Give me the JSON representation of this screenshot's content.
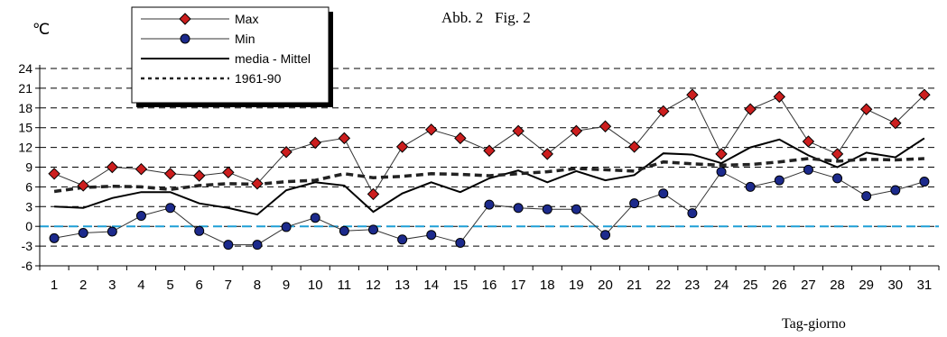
{
  "chart_data": {
    "type": "line",
    "figure_label": "Abb. 2   Fig. 2",
    "ylabel": "℃",
    "xlabel": "Tag-giorno",
    "ylim": [
      -6,
      24
    ],
    "yticks": [
      24,
      21,
      18,
      15,
      12,
      9,
      6,
      3,
      0,
      -3,
      -6
    ],
    "grid": "dashed horizontal",
    "legend_position": "top-left",
    "x": [
      1,
      2,
      3,
      4,
      5,
      6,
      7,
      8,
      9,
      10,
      11,
      12,
      13,
      14,
      15,
      16,
      17,
      18,
      19,
      20,
      21,
      22,
      23,
      24,
      25,
      26,
      27,
      28,
      29,
      30,
      31
    ],
    "reference_line": {
      "y": 0,
      "color": "#1f9fd6"
    },
    "series": [
      {
        "name": "Max",
        "color": "#cc1e1e",
        "marker": "diamond",
        "values": [
          8.0,
          6.2,
          9.0,
          8.7,
          8.0,
          7.7,
          8.2,
          6.5,
          11.3,
          12.7,
          13.4,
          4.9,
          12.1,
          14.7,
          13.4,
          11.5,
          14.5,
          11.0,
          14.5,
          15.2,
          12.1,
          17.5,
          20.0,
          11.0,
          17.8,
          19.7,
          12.9,
          11.0,
          17.8,
          15.7,
          20.0
        ]
      },
      {
        "name": "Min",
        "color": "#1c2a8c",
        "marker": "circle",
        "values": [
          -1.8,
          -1.0,
          -0.8,
          1.6,
          2.8,
          -0.7,
          -2.8,
          -2.8,
          -0.1,
          1.3,
          -0.7,
          -0.5,
          -2.0,
          -1.3,
          -2.5,
          3.3,
          2.8,
          2.6,
          2.6,
          -1.3,
          3.5,
          5.0,
          2.0,
          8.3,
          6.0,
          7.0,
          8.6,
          7.3,
          4.6,
          5.5,
          6.8
        ]
      },
      {
        "name": "media - Mittel",
        "color": "#000000",
        "marker": "none",
        "values": [
          3.0,
          2.8,
          4.3,
          5.2,
          5.2,
          3.5,
          2.8,
          1.8,
          5.5,
          6.7,
          6.2,
          2.2,
          5.0,
          6.7,
          5.2,
          7.3,
          8.5,
          6.7,
          8.4,
          7.0,
          7.8,
          11.1,
          10.9,
          9.6,
          12.0,
          13.2,
          10.8,
          9.0,
          11.2,
          10.5,
          13.4
        ]
      },
      {
        "name": "1961-90",
        "color": "#222222",
        "marker": "none",
        "dash": "dotted",
        "values": [
          5.3,
          5.9,
          6.1,
          6.0,
          5.6,
          6.2,
          6.5,
          6.4,
          6.8,
          7.0,
          8.0,
          7.4,
          7.6,
          8.0,
          7.9,
          7.7,
          8.0,
          8.3,
          8.8,
          8.6,
          8.4,
          9.8,
          9.5,
          9.3,
          9.4,
          9.8,
          10.3,
          9.9,
          10.2,
          10.1,
          10.3
        ]
      }
    ]
  }
}
